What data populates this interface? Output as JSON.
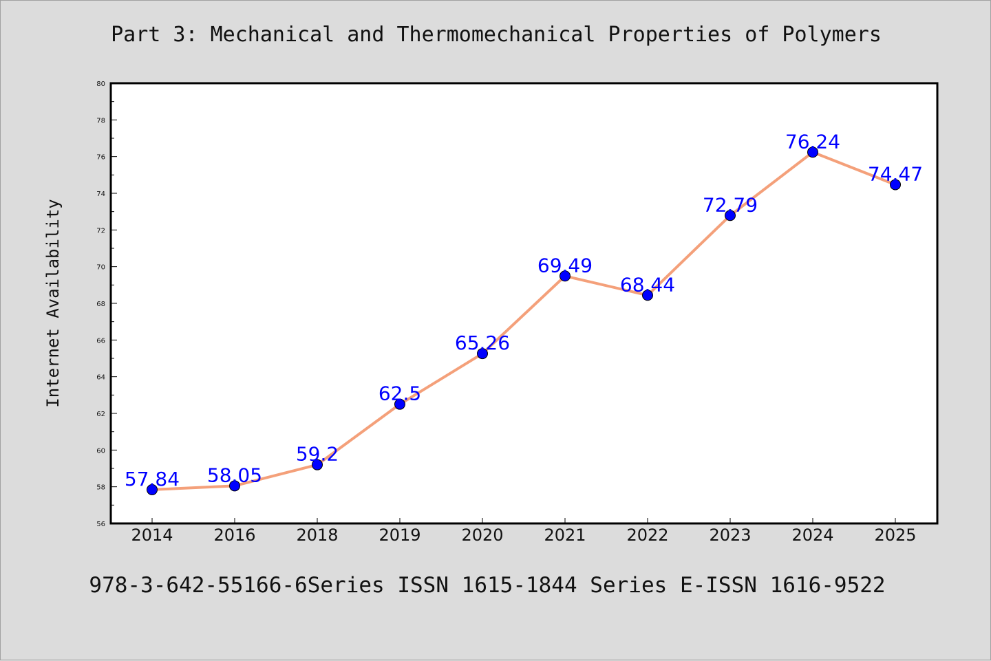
{
  "title": "Part 3: Mechanical and Thermomechanical Properties of Polymers",
  "footer": "978-3-642-55166-6Series ISSN 1615-1844 Series E-ISSN 1616-9522",
  "colors": {
    "background": "#dcdcdc",
    "plot_background": "#ffffff",
    "line": "#f4a07a",
    "marker": "#0000ff",
    "data_label": "#0000ff"
  },
  "chart_data": {
    "type": "line",
    "title": "Part 3: Mechanical and Thermomechanical Properties of Polymers",
    "xlabel": "",
    "ylabel": "Internet Availability",
    "categories": [
      "2014",
      "2016",
      "2018",
      "2019",
      "2020",
      "2021",
      "2022",
      "2023",
      "2024",
      "2025"
    ],
    "series": [
      {
        "values": [
          57.84,
          58.05,
          59.2,
          62.5,
          65.26,
          69.49,
          68.44,
          72.79,
          76.24,
          74.47
        ],
        "labels": [
          "57.84",
          "58.05",
          "59.2",
          "62.5",
          "65.26",
          "69.49",
          "68.44",
          "72.79",
          "76.24",
          "74.47"
        ]
      }
    ],
    "ylim": [
      56,
      80
    ],
    "yticks": [
      "56",
      "58",
      "60",
      "62",
      "64",
      "66",
      "68",
      "70",
      "72",
      "74",
      "76",
      "78",
      "80"
    ],
    "grid": false,
    "legend": "none"
  }
}
